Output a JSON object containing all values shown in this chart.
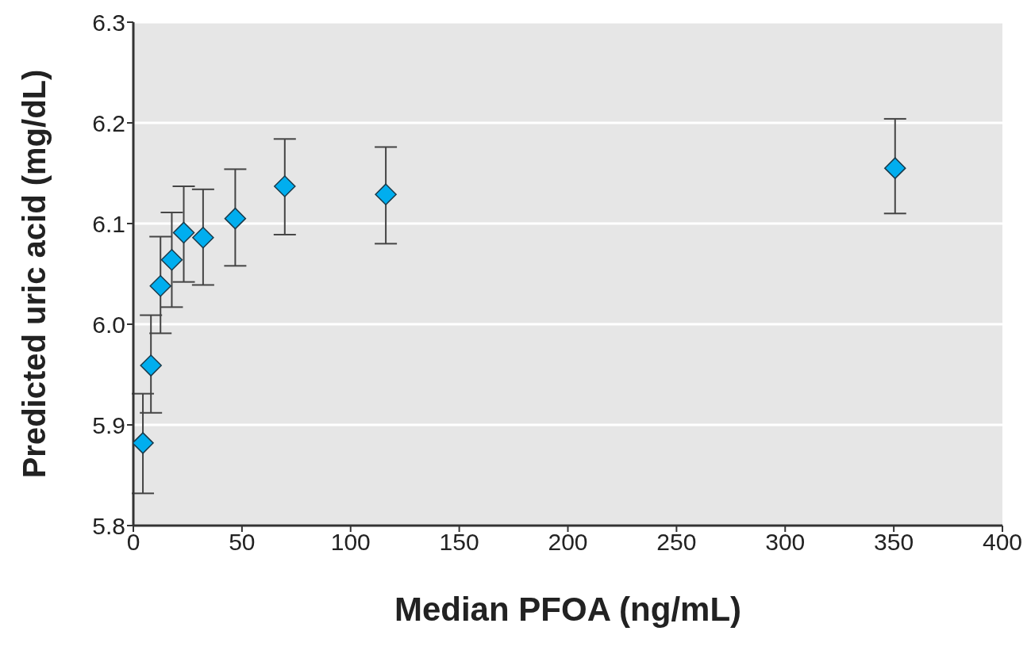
{
  "chart_data": {
    "type": "scatter",
    "xlabel": "Median PFOA (ng/mL)",
    "ylabel": "Predicted uric acid (mg/dL)",
    "x": [
      4.4,
      8.1,
      12.5,
      17.7,
      23.2,
      32.1,
      46.9,
      69.7,
      116.2,
      350.6
    ],
    "series": [
      {
        "color": "#00aeef",
        "values": [
          5.882,
          5.959,
          6.038,
          6.064,
          6.091,
          6.086,
          6.105,
          6.137,
          6.129,
          6.155
        ],
        "errors": [
          [
            5.832,
            5.931
          ],
          [
            5.912,
            6.009
          ],
          [
            5.991,
            6.087
          ],
          [
            6.017,
            6.111
          ],
          [
            6.042,
            6.137
          ],
          [
            6.039,
            6.134
          ],
          [
            6.058,
            6.154
          ],
          [
            6.089,
            6.184
          ],
          [
            6.08,
            6.176
          ],
          [
            6.11,
            6.204
          ]
        ]
      }
    ],
    "xlim": [
      0,
      400
    ],
    "xticks": [
      0,
      50,
      100,
      150,
      200,
      250,
      300,
      350,
      400
    ],
    "ylim": [
      5.8,
      6.3
    ],
    "yticks": [
      5.8,
      5.9,
      {
        "value": 6,
        "label": "6.0"
      },
      6.1,
      6.2,
      6.3
    ],
    "grid": "y",
    "marker": "diamond"
  }
}
